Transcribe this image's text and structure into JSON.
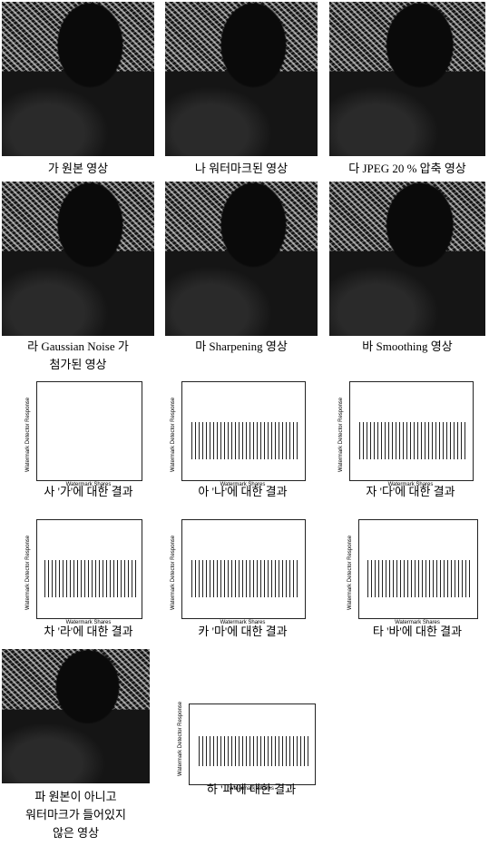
{
  "plot_labels": {
    "y": "Watermark Detector Response",
    "x": "Watermark Shares"
  },
  "panels": [
    {
      "kind": "image",
      "caption": [
        "가 원본 영상"
      ]
    },
    {
      "kind": "image",
      "caption": [
        "나 워터마크된 영상"
      ]
    },
    {
      "kind": "image",
      "caption": [
        "다 JPEG 20 % 압축 영상"
      ]
    },
    {
      "kind": "image",
      "caption": [
        "라 Gaussian Noise 가",
        "첨가된 영상"
      ]
    },
    {
      "kind": "image",
      "caption": [
        "마 Sharpening 영상"
      ]
    },
    {
      "kind": "image",
      "caption": [
        "바 Smoothing 영상"
      ]
    },
    {
      "kind": "plot",
      "caption": [
        "사 '가'에 대한 결과"
      ]
    },
    {
      "kind": "plot",
      "caption": [
        "아 '나'에 대한 결과"
      ]
    },
    {
      "kind": "plot",
      "caption": [
        "자 '다'에 대한 결과"
      ]
    },
    {
      "kind": "plot",
      "caption": [
        "차 '라'에 대한 결과"
      ]
    },
    {
      "kind": "plot",
      "caption": [
        "카 '마'에 대한 결과"
      ]
    },
    {
      "kind": "plot",
      "caption": [
        "타 '바'에 대한 결과"
      ]
    },
    {
      "kind": "image",
      "caption": [
        "파 원본이 아니고",
        "워터마크가 들어있지",
        "않은 영상"
      ]
    },
    {
      "kind": "plot",
      "caption": [
        "하 '파'에 대한 결과"
      ]
    }
  ]
}
